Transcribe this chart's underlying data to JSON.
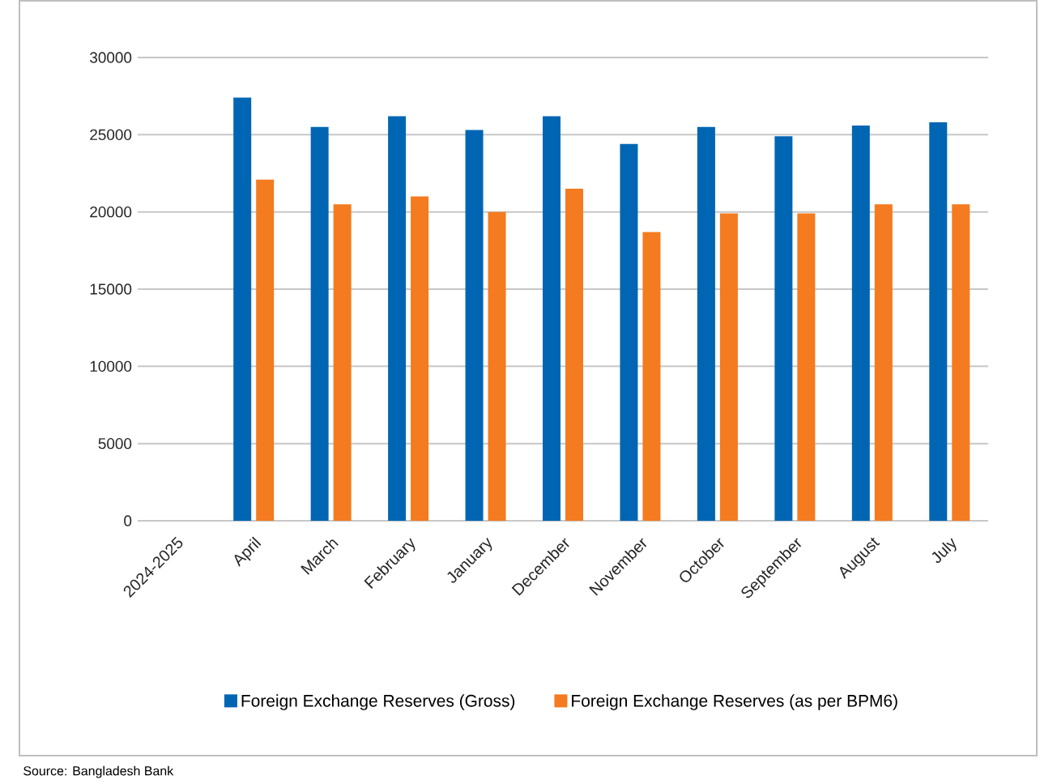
{
  "chart_data": {
    "type": "bar",
    "categories": [
      "2024-2025",
      "April",
      "March",
      "February",
      "January",
      "December",
      "November",
      "October",
      "September",
      "August",
      "July"
    ],
    "series": [
      {
        "name": "Foreign Exchange Reserves (Gross)",
        "color": "#0066b3",
        "values": [
          null,
          27400,
          25500,
          26200,
          25300,
          26200,
          24400,
          25500,
          24900,
          25600,
          25800
        ]
      },
      {
        "name": "Foreign Exchange Reserves (as per BPM6)",
        "color": "#f47b20",
        "values": [
          null,
          22100,
          20500,
          21000,
          20000,
          21500,
          18700,
          19900,
          19900,
          20500,
          20500
        ]
      }
    ],
    "ylim": [
      0,
      30000
    ],
    "yticks": [
      0,
      5000,
      10000,
      15000,
      20000,
      25000,
      30000
    ],
    "grid": "y",
    "legend": "bottom",
    "annotations": [
      "Source: Bangladesh Bank"
    ]
  }
}
